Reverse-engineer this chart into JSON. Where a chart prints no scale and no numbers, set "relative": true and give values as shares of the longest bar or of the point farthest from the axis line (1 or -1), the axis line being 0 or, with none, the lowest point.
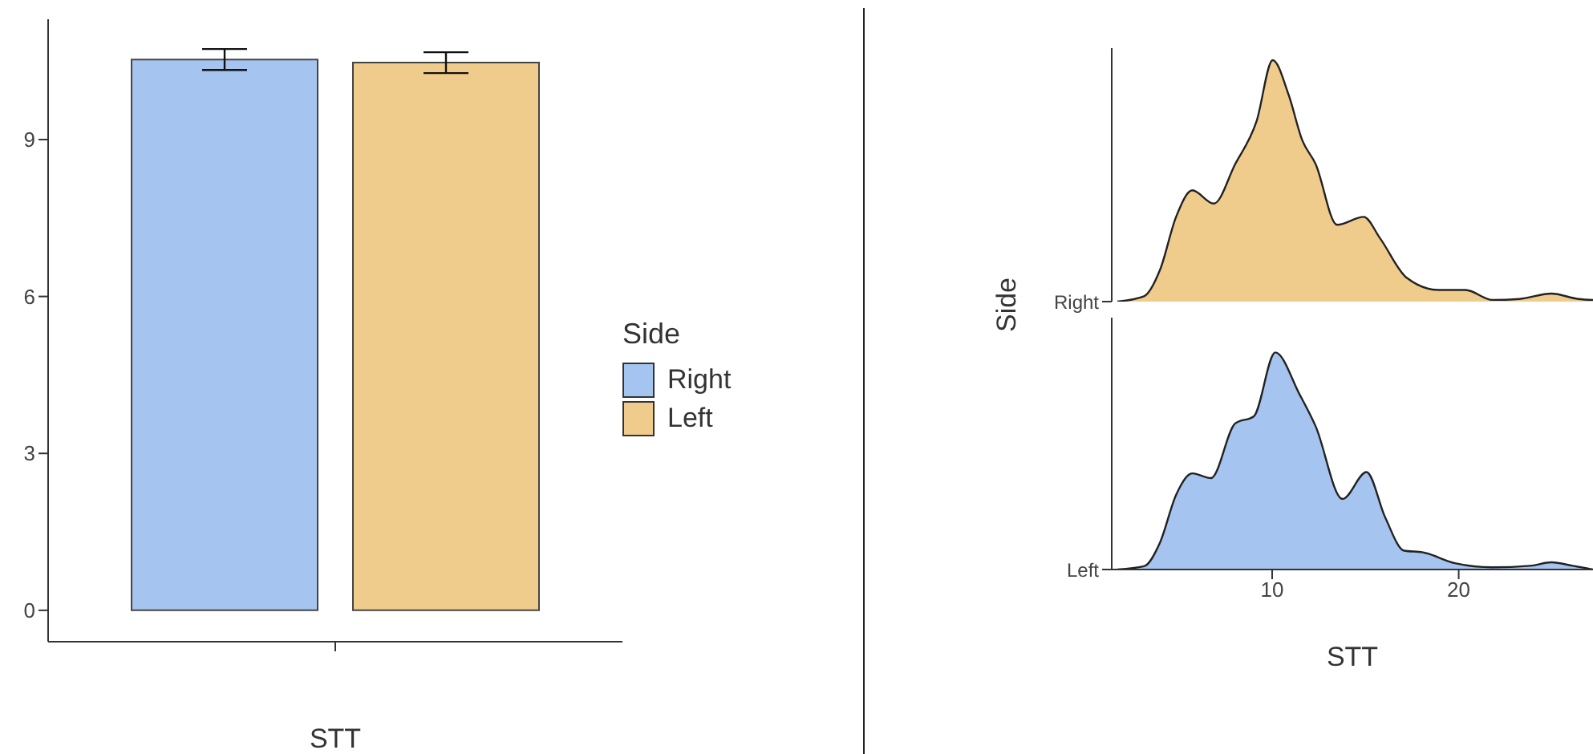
{
  "chart_data": [
    {
      "type": "bar",
      "categories": [
        null
      ],
      "xlabel": "STT",
      "legend_title": "Side",
      "legend": "right",
      "grid": false,
      "ylim": [
        -0.6,
        11.3
      ],
      "yticks": [
        0,
        3,
        6,
        9
      ],
      "series": [
        {
          "name": "Right",
          "color": "#a6c4f0",
          "values": [
            10.53
          ],
          "errors": [
            0.2
          ]
        },
        {
          "name": "Left",
          "color": "#f0cc8c",
          "values": [
            10.47
          ],
          "errors": [
            0.2
          ]
        }
      ]
    },
    {
      "type": "area",
      "relative": true,
      "ylabel": "Side",
      "grid": false,
      "xlim": [
        1.4,
        27.2
      ],
      "tick_labels": "y",
      "series": [
        {
          "name": "Right",
          "color": "#f0cc8c",
          "x": [
            1.7,
            3.13,
            3.99,
            4.85,
            5.72,
            6.87,
            8.02,
            9.16,
            10.03,
            10.89,
            11.61,
            12.33,
            13.48,
            14.91,
            15.78,
            17.21,
            18.94,
            20.37,
            21.81,
            23.25,
            24.97,
            26.41,
            27.2
          ],
          "values": [
            0,
            0.022,
            0.132,
            0.351,
            0.461,
            0.406,
            0.57,
            0.746,
            1,
            0.855,
            0.669,
            0.57,
            0.318,
            0.351,
            0.263,
            0.099,
            0.048,
            0.048,
            0.007,
            0.011,
            0.033,
            0.011,
            0.007
          ]
        }
      ]
    },
    {
      "type": "area",
      "relative": true,
      "xlabel": "STT",
      "grid": false,
      "xlim": [
        1.4,
        27.2
      ],
      "xticks": [
        10,
        20
      ],
      "series": [
        {
          "name": "Left",
          "color": "#a6c4f0",
          "x": [
            1.7,
            3.13,
            3.99,
            4.85,
            5.72,
            6.72,
            8.02,
            9.02,
            10.17,
            11.47,
            12.33,
            13.77,
            15.06,
            16.06,
            17.07,
            18.08,
            19.8,
            21.81,
            23.82,
            24.97,
            26.12,
            27.2
          ],
          "values": [
            0,
            0.015,
            0.125,
            0.344,
            0.443,
            0.421,
            0.673,
            0.706,
            1,
            0.807,
            0.66,
            0.325,
            0.449,
            0.24,
            0.087,
            0.079,
            0.029,
            0.01,
            0.017,
            0.033,
            0.017,
            0
          ]
        }
      ]
    }
  ]
}
